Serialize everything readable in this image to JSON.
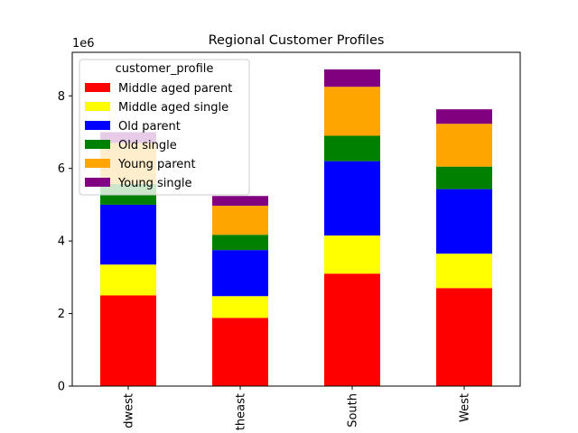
{
  "chart_data": {
    "type": "bar",
    "stacked": true,
    "title": "Regional Customer Profiles",
    "xlabel": "",
    "ylabel": "",
    "y_scale_label": "1e6",
    "ylim": [
      0,
      9200000
    ],
    "yticks": [
      0,
      2000000,
      4000000,
      6000000,
      8000000
    ],
    "ytick_labels": [
      "0",
      "2",
      "4",
      "6",
      "8"
    ],
    "categories": [
      "Midwest",
      "Northeast",
      "South",
      "West"
    ],
    "category_labels_visible": [
      "dwest",
      "theast",
      "South",
      "West"
    ],
    "legend": {
      "title": "customer_profile",
      "placement": "upper-left"
    },
    "series": [
      {
        "name": "Middle aged parent",
        "color": "#ff0000",
        "values": [
          2500000,
          1880000,
          3100000,
          2700000
        ]
      },
      {
        "name": "Middle aged single",
        "color": "#ffff00",
        "values": [
          850000,
          600000,
          1050000,
          950000
        ]
      },
      {
        "name": "Old parent",
        "color": "#0000ff",
        "values": [
          1650000,
          1270000,
          2050000,
          1780000
        ]
      },
      {
        "name": "Old single",
        "color": "#008000",
        "values": [
          570000,
          420000,
          700000,
          620000
        ]
      },
      {
        "name": "Young parent",
        "color": "#ffa500",
        "values": [
          1130000,
          800000,
          1350000,
          1180000
        ]
      },
      {
        "name": "Young single",
        "color": "#800080",
        "values": [
          300000,
          270000,
          480000,
          400000
        ]
      }
    ]
  }
}
